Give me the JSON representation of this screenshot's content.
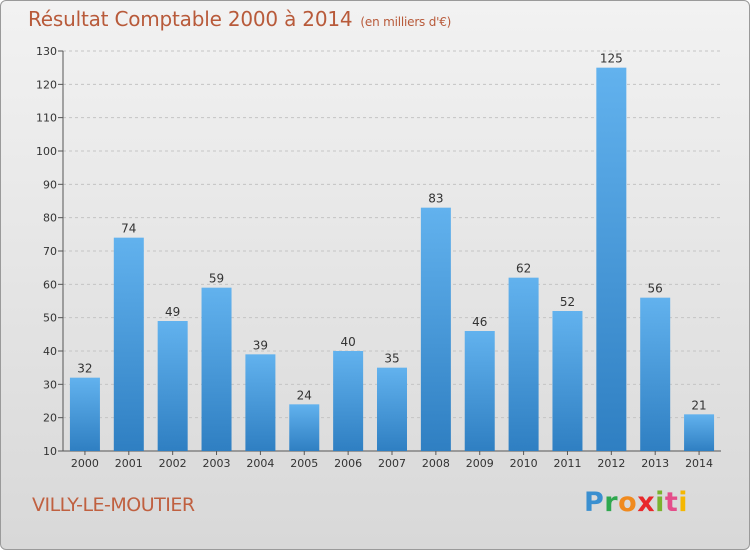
{
  "chart_data": {
    "type": "bar",
    "title": "Résultat Comptable 2000 à 2014",
    "subtitle": "(en milliers d'€)",
    "categories": [
      "2000",
      "2001",
      "2002",
      "2003",
      "2004",
      "2005",
      "2006",
      "2007",
      "2008",
      "2009",
      "2010",
      "2011",
      "2012",
      "2013",
      "2014"
    ],
    "values": [
      32,
      74,
      49,
      59,
      39,
      24,
      40,
      35,
      83,
      46,
      62,
      52,
      125,
      56,
      21
    ],
    "ylim": [
      10,
      130
    ],
    "yticks": [
      10,
      20,
      30,
      40,
      50,
      60,
      70,
      80,
      90,
      100,
      110,
      120,
      130
    ],
    "grid": true,
    "bar_color_top": "#62b2ee",
    "bar_color_bottom": "#2f7fc2"
  },
  "commune": "VILLY-LE-MOUTIER",
  "logo": {
    "text": "Proxiti",
    "letters": [
      "P",
      "r",
      "o",
      "x",
      "i",
      "t",
      "i"
    ]
  }
}
